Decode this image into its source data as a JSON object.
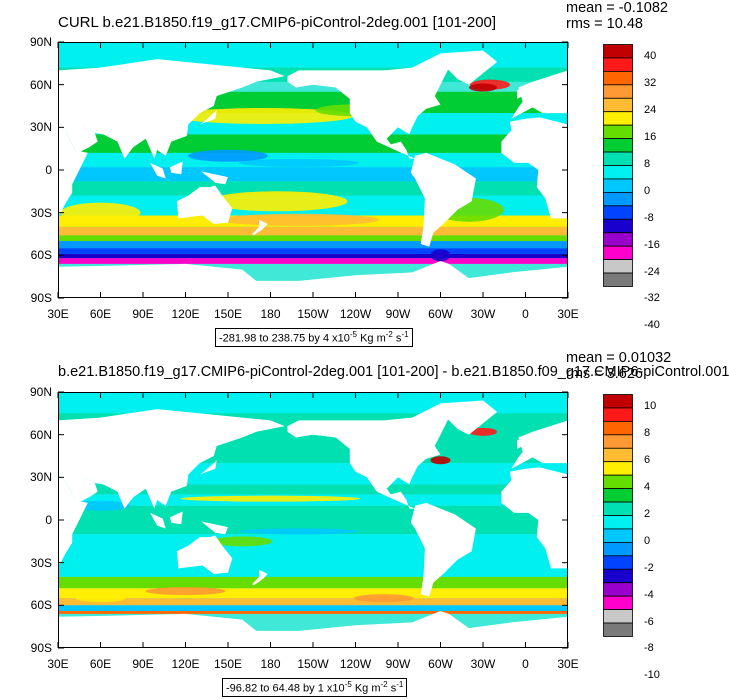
{
  "panels": [
    {
      "title": "CURL b.e21.B1850.f19_g17.CMIP6-piControl-2deg.001 [101-200]",
      "mean": "mean = -0.1082",
      "rms": "rms = 10.48",
      "range_prefix": "-281.98 to 238.75 by 4 x10",
      "range_exp": "-5",
      "range_unit": " Kg m",
      "range_unit_exp": "-2",
      "range_s": " s",
      "range_s_exp": "-1",
      "colorbar_labels": [
        "40",
        "32",
        "24",
        "16",
        "8",
        "0",
        "-8",
        "-16",
        "-24",
        "-32",
        "-40"
      ]
    },
    {
      "title": "b.e21.B1850.f19_g17.CMIP6-piControl-2deg.001 [101-200] - b.e21.B1850.f09_g17.CMIP6-piControl.001",
      "mean": "mean = 0.01032",
      "rms": "rms = 3.626",
      "range_prefix": "-96.82 to 64.48 by 1 x10",
      "range_exp": "-5",
      "range_unit": " Kg m",
      "range_unit_exp": "-2",
      "range_s": " s",
      "range_s_exp": "-1",
      "colorbar_labels": [
        "10",
        "8",
        "6",
        "4",
        "2",
        "0",
        "-2",
        "-4",
        "-6",
        "-8",
        "-10"
      ]
    }
  ],
  "axes": {
    "lat_labels": [
      "90N",
      "60N",
      "30N",
      "0",
      "30S",
      "60S",
      "90S"
    ],
    "lon_labels": [
      "30E",
      "60E",
      "90E",
      "120E",
      "150E",
      "180",
      "150W",
      "120W",
      "90W",
      "60W",
      "30W",
      "0",
      "30E"
    ]
  },
  "colors": {
    "palette": [
      "#c00000",
      "#ff1a1a",
      "#ff6600",
      "#ff9933",
      "#ffbb33",
      "#ffee00",
      "#66dd00",
      "#00cc33",
      "#00e0b0",
      "#00f0f0",
      "#00c8ff",
      "#0099ff",
      "#0044ff",
      "#1a00cc",
      "#9900cc",
      "#ff00cc",
      "#c8c8c8",
      "#7a7a7a"
    ],
    "ocean_base": "#40e8d8",
    "land": "#ffffff"
  }
}
